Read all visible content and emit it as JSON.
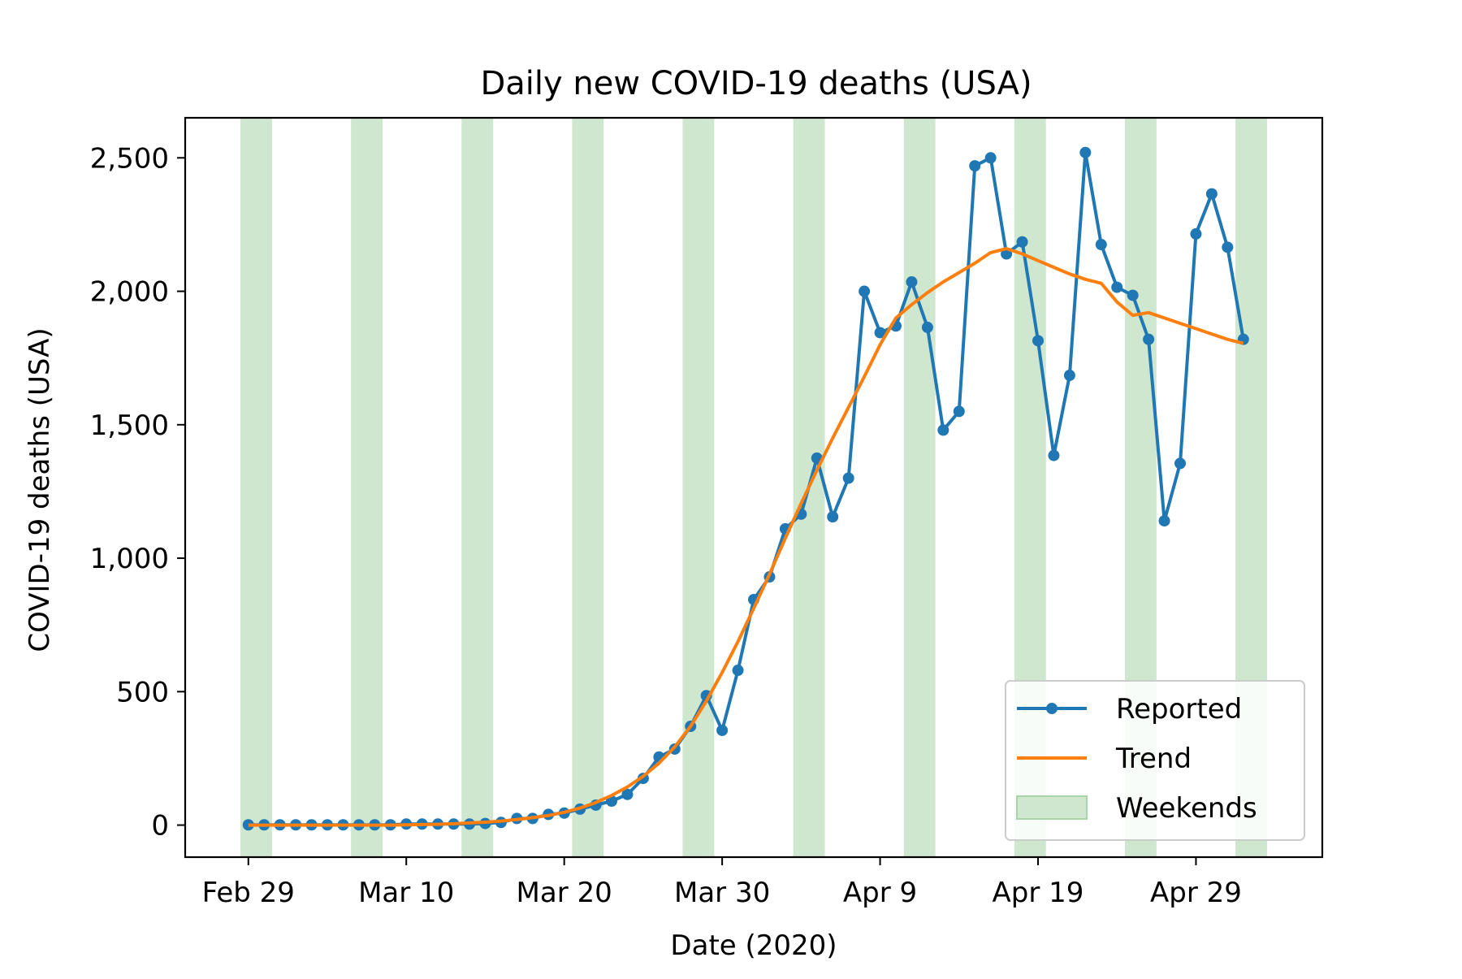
{
  "chart_data": {
    "type": "line",
    "title": "Daily new COVID-19 deaths (USA)",
    "xlabel": "Date (2020)",
    "ylabel": "COVID-19 deaths (USA)",
    "x": [
      "2020-02-29",
      "2020-03-01",
      "2020-03-02",
      "2020-03-03",
      "2020-03-04",
      "2020-03-05",
      "2020-03-06",
      "2020-03-07",
      "2020-03-08",
      "2020-03-09",
      "2020-03-10",
      "2020-03-11",
      "2020-03-12",
      "2020-03-13",
      "2020-03-14",
      "2020-03-15",
      "2020-03-16",
      "2020-03-17",
      "2020-03-18",
      "2020-03-19",
      "2020-03-20",
      "2020-03-21",
      "2020-03-22",
      "2020-03-23",
      "2020-03-24",
      "2020-03-25",
      "2020-03-26",
      "2020-03-27",
      "2020-03-28",
      "2020-03-29",
      "2020-03-30",
      "2020-03-31",
      "2020-04-01",
      "2020-04-02",
      "2020-04-03",
      "2020-04-04",
      "2020-04-05",
      "2020-04-06",
      "2020-04-07",
      "2020-04-08",
      "2020-04-09",
      "2020-04-10",
      "2020-04-11",
      "2020-04-12",
      "2020-04-13",
      "2020-04-14",
      "2020-04-15",
      "2020-04-16",
      "2020-04-17",
      "2020-04-18",
      "2020-04-19",
      "2020-04-20",
      "2020-04-21",
      "2020-04-22",
      "2020-04-23",
      "2020-04-24",
      "2020-04-25",
      "2020-04-26",
      "2020-04-27",
      "2020-04-28",
      "2020-04-29",
      "2020-04-30",
      "2020-05-01",
      "2020-05-02"
    ],
    "xlim": [
      "2020-02-25",
      "2020-05-07"
    ],
    "ylim": [
      -120,
      2650
    ],
    "x_ticks": [
      {
        "date": "2020-02-29",
        "label": "Feb 29"
      },
      {
        "date": "2020-03-10",
        "label": "Mar 10"
      },
      {
        "date": "2020-03-20",
        "label": "Mar 20"
      },
      {
        "date": "2020-03-30",
        "label": "Mar 30"
      },
      {
        "date": "2020-04-09",
        "label": "Apr 9"
      },
      {
        "date": "2020-04-19",
        "label": "Apr 19"
      },
      {
        "date": "2020-04-29",
        "label": "Apr 29"
      }
    ],
    "y_ticks": [
      {
        "value": 0,
        "label": "0"
      },
      {
        "value": 500,
        "label": "500"
      },
      {
        "value": 1000,
        "label": "1,000"
      },
      {
        "value": 1500,
        "label": "1,500"
      },
      {
        "value": 2000,
        "label": "2,000"
      },
      {
        "value": 2500,
        "label": "2,500"
      }
    ],
    "series": [
      {
        "name": "Reported",
        "color": "#1f77b4",
        "marker": "circle",
        "values": [
          1,
          1,
          1,
          1,
          1,
          1,
          1,
          1,
          1,
          1,
          4,
          4,
          4,
          4,
          4,
          6,
          10,
          25,
          25,
          40,
          45,
          60,
          75,
          90,
          115,
          175,
          255,
          285,
          370,
          485,
          355,
          580,
          845,
          930,
          1110,
          1165,
          1375,
          1155,
          1300,
          2000,
          1845,
          1870,
          2035,
          1865,
          1480,
          1550,
          2470,
          2500,
          2140,
          2185,
          1815,
          1385,
          1685,
          2520,
          2175,
          2015,
          1985,
          1820,
          1140,
          1355,
          2215,
          2365,
          2165,
          1820
        ]
      },
      {
        "name": "Trend",
        "color": "#ff7f0e",
        "marker": "none",
        "values": [
          0,
          0,
          0,
          0,
          0,
          0,
          0,
          0,
          0,
          0,
          1,
          2,
          3,
          5,
          8,
          11,
          15,
          21,
          28,
          36,
          48,
          64,
          85,
          111,
          143,
          183,
          232,
          293,
          370,
          465,
          572,
          688,
          812,
          940,
          1075,
          1205,
          1330,
          1450,
          1565,
          1680,
          1800,
          1900,
          1950,
          1995,
          2035,
          2070,
          2105,
          2145,
          2160,
          2140,
          2115,
          2090,
          2065,
          2045,
          2030,
          1960,
          1910,
          1920,
          1900,
          1880,
          1860,
          1840,
          1820,
          1805
        ]
      }
    ],
    "shaded_regions": {
      "name": "Weekends",
      "color": "#cfe6cf",
      "ranges": [
        [
          "2020-02-29",
          "2020-03-01"
        ],
        [
          "2020-03-07",
          "2020-03-08"
        ],
        [
          "2020-03-14",
          "2020-03-15"
        ],
        [
          "2020-03-21",
          "2020-03-22"
        ],
        [
          "2020-03-28",
          "2020-03-29"
        ],
        [
          "2020-04-04",
          "2020-04-05"
        ],
        [
          "2020-04-11",
          "2020-04-12"
        ],
        [
          "2020-04-18",
          "2020-04-19"
        ],
        [
          "2020-04-25",
          "2020-04-26"
        ],
        [
          "2020-05-02",
          "2020-05-03"
        ]
      ]
    },
    "legend": {
      "placement": "lower-right",
      "entries": [
        {
          "label": "Reported",
          "kind": "line-marker",
          "color": "#1f77b4"
        },
        {
          "label": "Trend",
          "kind": "line",
          "color": "#ff7f0e"
        },
        {
          "label": "Weekends",
          "kind": "patch",
          "color": "#cfe6cf"
        }
      ]
    },
    "grid": false
  }
}
